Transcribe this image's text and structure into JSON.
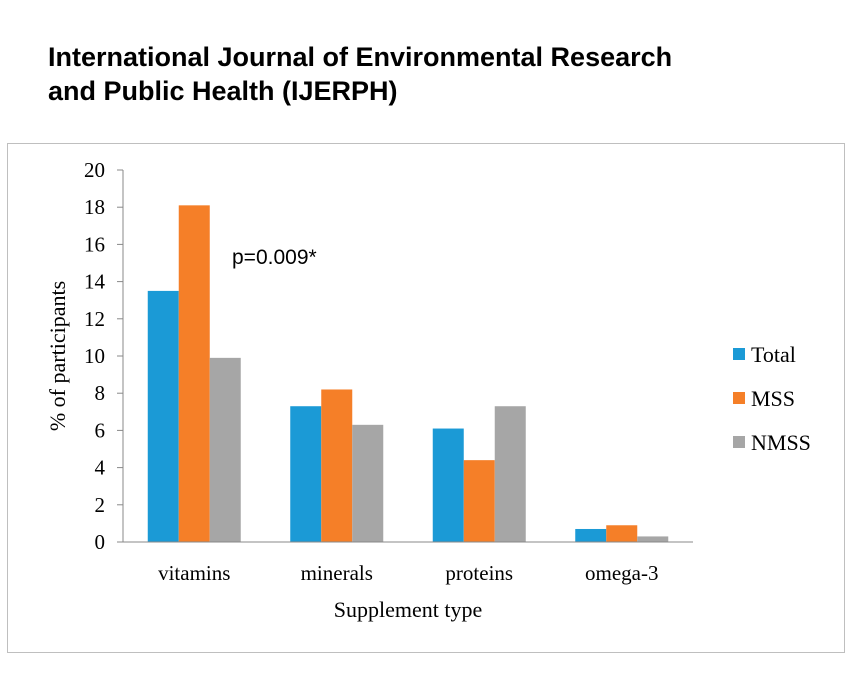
{
  "header": {
    "line1": "International Journal of Environmental Research",
    "line2": "and Public Health (IJERPH)"
  },
  "chart_data": {
    "type": "bar",
    "categories": [
      "vitamins",
      "minerals",
      "proteins",
      "omega-3"
    ],
    "series": [
      {
        "name": "Total",
        "color": "#1b9ad6",
        "values": [
          13.5,
          7.3,
          6.1,
          0.7
        ]
      },
      {
        "name": "MSS",
        "color": "#f57f28",
        "values": [
          18.1,
          8.2,
          4.4,
          0.9
        ]
      },
      {
        "name": "NMSS",
        "color": "#a6a6a6",
        "values": [
          9.9,
          6.3,
          7.3,
          0.3
        ]
      }
    ],
    "xlabel": "Supplement type",
    "ylabel": "% of participants",
    "ylim": [
      0,
      20
    ],
    "yticks": [
      "0",
      "2",
      "4",
      "6",
      "8",
      "10",
      "12",
      "14",
      "16",
      "18",
      "20"
    ],
    "annotation": "p=0.009*",
    "grid": false,
    "legend_position": "right"
  }
}
